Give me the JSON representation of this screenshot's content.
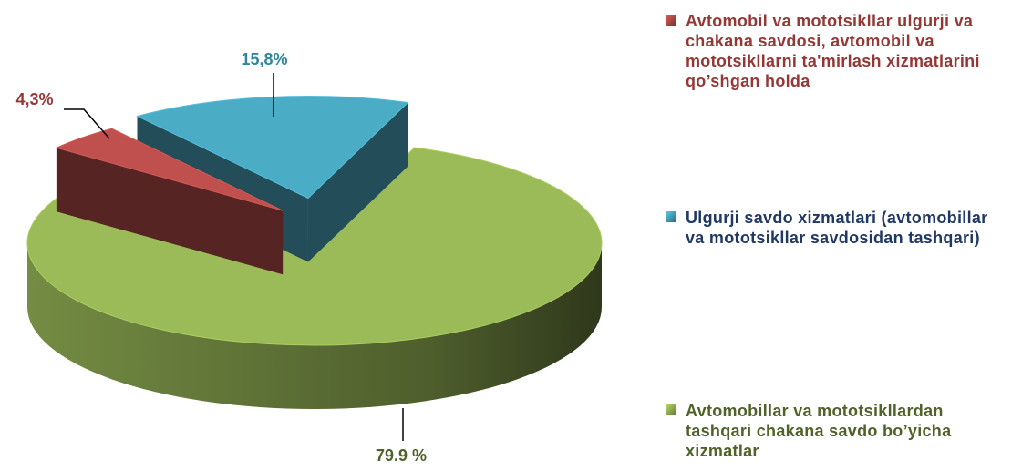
{
  "chart_data": {
    "type": "pie",
    "categories": [
      "Avtomobil va mototsikllar ulgurji va chakana savdosi, avtomobil va mototsikllarni ta'mirlash xizmatlarini qo’shgan holda",
      "Ulgurji savdo xizmatlari (avtomobillar va mototsikllar savdosidan tashqari)",
      "Avtomobillar va mototsikllardan tashqari chakana savdo bo’yicha xizmatlar"
    ],
    "values": [
      4.3,
      15.8,
      79.9
    ],
    "value_labels": [
      "4,3%",
      "15,8%",
      "79.9 %"
    ],
    "colors": [
      "#c0504d",
      "#4bacc6",
      "#9bbb59"
    ],
    "legend": "right"
  }
}
